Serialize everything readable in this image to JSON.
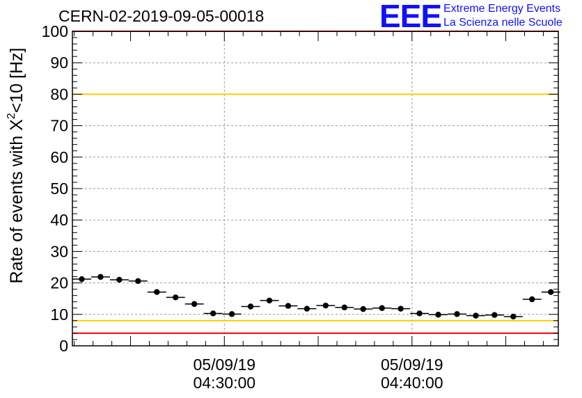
{
  "header": {
    "title": "CERN-02-2019-09-05-00018",
    "logo_text": "EEE",
    "brand_line1": "Extreme Energy Events",
    "brand_line2": "La Scienza nelle Scuole"
  },
  "colors": {
    "logo": "#1010ff",
    "data": "#000000",
    "red_line": "#ff0000",
    "yellow_line": "#ffcc00",
    "grid": "#999999"
  },
  "chart_data": {
    "type": "scatter",
    "title": "CERN-02-2019-09-05-00018",
    "ylabel_parts": [
      "Rate of events with X",
      "2",
      "<10 [Hz]"
    ],
    "ylim": [
      0,
      100
    ],
    "y_ticks": [
      0,
      10,
      20,
      30,
      40,
      50,
      60,
      70,
      80,
      90,
      100
    ],
    "x_tick_labels": [
      {
        "date": "05/09/19",
        "time": "04:30:00",
        "minutes": 30
      },
      {
        "date": "05/09/19",
        "time": "04:40:00",
        "minutes": 40
      }
    ],
    "x_unit": "minutes after 04:00 on 05/09/19",
    "xlim_minutes": [
      21.9,
      47.8
    ],
    "bin_width_minutes": 1,
    "grid": true,
    "reference_lines": [
      {
        "y": 4,
        "color": "#ff0000"
      },
      {
        "y": 8,
        "color": "#ffcc00"
      },
      {
        "y": 80,
        "color": "#ffcc00"
      },
      {
        "y": 100,
        "color": "#ff0000"
      }
    ],
    "x": [
      22.4,
      23.4,
      24.4,
      25.4,
      26.4,
      27.4,
      28.4,
      29.4,
      30.4,
      31.4,
      32.4,
      33.4,
      34.4,
      35.4,
      36.4,
      37.4,
      38.4,
      39.4,
      40.4,
      41.4,
      42.4,
      43.4,
      44.4,
      45.4,
      46.4,
      47.4
    ],
    "y": [
      21.2,
      21.9,
      21.0,
      20.6,
      17.1,
      15.4,
      13.3,
      10.3,
      10.1,
      12.5,
      14.4,
      12.7,
      11.8,
      12.8,
      12.2,
      11.7,
      12.0,
      11.8,
      10.3,
      9.9,
      10.1,
      9.6,
      9.8,
      9.3,
      14.8,
      17.1
    ]
  }
}
